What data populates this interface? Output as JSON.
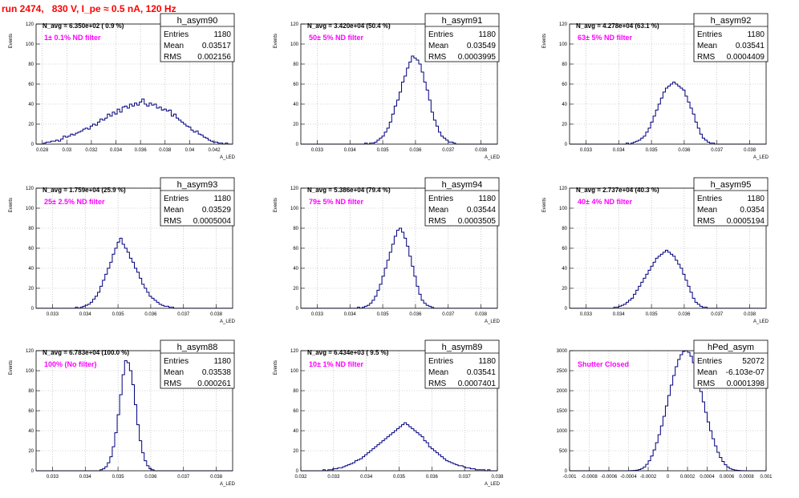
{
  "page": {
    "run_title": "run 2474,   830 V, I_pe ≈ 0.5 nA, 120 Hz"
  },
  "colors": {
    "histogram": "#00007f",
    "annotation": "#ff00ff",
    "title": "#ff0000",
    "grid": "#aaaaaa"
  },
  "chart_data": [
    {
      "type": "histogram",
      "name": "h_asym90",
      "annotation": "N_avg = 6.350e+02 ( 0.9 %)",
      "label": "1± 0.1% ND filter",
      "stats": {
        "Entries": "1180",
        "Mean": "0.03517",
        "RMS": "0.002156"
      },
      "ylabel": "Events",
      "xlabel": "A_LED",
      "xlim": [
        0.0275,
        0.0435
      ],
      "ylim": [
        0,
        120
      ],
      "xticks": [
        "0.028",
        "0.03",
        "0.032",
        "0.034",
        "0.036",
        "0.038",
        "0.04",
        "0.042"
      ],
      "yticks": [
        "0",
        "20",
        "40",
        "60",
        "80",
        "100",
        "120"
      ],
      "grid": true,
      "values": [
        0,
        0,
        0,
        1,
        2,
        2,
        3,
        3,
        4,
        3,
        5,
        8,
        7,
        8,
        10,
        9,
        11,
        12,
        13,
        15,
        16,
        15,
        18,
        20,
        19,
        22,
        25,
        24,
        26,
        30,
        28,
        32,
        30,
        35,
        32,
        37,
        38,
        36,
        40,
        38,
        41,
        39,
        42,
        45,
        40,
        38,
        41,
        39,
        40,
        36,
        37,
        34,
        35,
        33,
        34,
        28,
        30,
        26,
        24,
        22,
        20,
        18,
        17,
        14,
        12,
        13,
        10,
        9,
        7,
        6,
        4,
        3,
        2,
        2,
        1,
        1,
        0,
        1,
        0,
        0
      ]
    },
    {
      "type": "histogram",
      "name": "h_asym91",
      "annotation": "N_avg = 3.420e+04 (50.4 %)",
      "label": "50± 5% ND filter",
      "stats": {
        "Entries": "1180",
        "Mean": "0.03549",
        "RMS": "0.0003995"
      },
      "ylabel": "Events",
      "xlabel": "A_LED",
      "xlim": [
        0.0325,
        0.0385
      ],
      "ylim": [
        0,
        120
      ],
      "xticks": [
        "0.033",
        "0.034",
        "0.035",
        "0.036",
        "0.037",
        "0.038"
      ],
      "yticks": [
        "0",
        "20",
        "40",
        "60",
        "80",
        "100",
        "120"
      ],
      "grid": true,
      "values": [
        0,
        0,
        0,
        0,
        0,
        0,
        0,
        0,
        0,
        0,
        0,
        0,
        0,
        0,
        0,
        0,
        0,
        0,
        0,
        0,
        0,
        0,
        0,
        0,
        0,
        0,
        1,
        0,
        1,
        1,
        2,
        4,
        6,
        8,
        12,
        16,
        22,
        30,
        38,
        44,
        52,
        62,
        68,
        76,
        82,
        88,
        86,
        84,
        80,
        72,
        62,
        54,
        44,
        32,
        24,
        18,
        12,
        8,
        6,
        4,
        2,
        2,
        1,
        0,
        0,
        0,
        0,
        0,
        0,
        0,
        0,
        0,
        0,
        0,
        0,
        0,
        0,
        0,
        0,
        0
      ]
    },
    {
      "type": "histogram",
      "name": "h_asym92",
      "annotation": "N_avg = 4.278e+04 (63.1 %)",
      "label": "63± 5% ND filter",
      "stats": {
        "Entries": "1180",
        "Mean": "0.03541",
        "RMS": "0.0004409"
      },
      "ylabel": "Events",
      "xlabel": "A_LED",
      "xlim": [
        0.0325,
        0.0385
      ],
      "ylim": [
        0,
        120
      ],
      "xticks": [
        "0.033",
        "0.034",
        "0.035",
        "0.036",
        "0.037",
        "0.038"
      ],
      "yticks": [
        "0",
        "20",
        "40",
        "60",
        "80",
        "100",
        "120"
      ],
      "grid": true,
      "values": [
        0,
        0,
        0,
        0,
        0,
        0,
        0,
        0,
        0,
        0,
        0,
        0,
        0,
        0,
        0,
        0,
        0,
        0,
        0,
        0,
        0,
        0,
        0,
        1,
        0,
        1,
        2,
        3,
        4,
        6,
        8,
        12,
        16,
        22,
        28,
        34,
        40,
        46,
        52,
        56,
        58,
        60,
        62,
        60,
        58,
        56,
        54,
        48,
        42,
        36,
        30,
        22,
        16,
        10,
        6,
        4,
        2,
        1,
        1,
        0,
        0,
        0,
        0,
        0,
        0,
        0,
        0,
        0,
        0,
        0,
        0,
        0,
        0,
        0,
        0,
        0,
        0,
        0,
        0,
        0
      ]
    },
    {
      "type": "histogram",
      "name": "h_asym93",
      "annotation": "N_avg = 1.759e+04 (25.9 %)",
      "label": "25± 2.5% ND filter",
      "stats": {
        "Entries": "1180",
        "Mean": "0.03529",
        "RMS": "0.0005004"
      },
      "ylabel": "Events",
      "xlabel": "A_LED",
      "xlim": [
        0.0325,
        0.0385
      ],
      "ylim": [
        0,
        120
      ],
      "xticks": [
        "0.033",
        "0.034",
        "0.035",
        "0.036",
        "0.037",
        "0.038"
      ],
      "yticks": [
        "0",
        "20",
        "40",
        "60",
        "80",
        "100",
        "120"
      ],
      "grid": true,
      "values": [
        0,
        0,
        0,
        0,
        0,
        0,
        0,
        0,
        0,
        0,
        0,
        0,
        0,
        0,
        0,
        0,
        1,
        0,
        1,
        2,
        3,
        4,
        6,
        9,
        12,
        16,
        22,
        28,
        34,
        40,
        46,
        54,
        60,
        66,
        70,
        64,
        60,
        56,
        50,
        46,
        40,
        36,
        30,
        24,
        20,
        16,
        12,
        10,
        8,
        6,
        4,
        3,
        2,
        2,
        1,
        1,
        0,
        0,
        0,
        0,
        0,
        0,
        0,
        0,
        0,
        0,
        0,
        0,
        0,
        0,
        0,
        0,
        0,
        0,
        0,
        0,
        0,
        0,
        0,
        0
      ]
    },
    {
      "type": "histogram",
      "name": "h_asym94",
      "annotation": "N_avg = 5.386e+04 (79.4 %)",
      "label": "79± 5% ND filter",
      "stats": {
        "Entries": "1180",
        "Mean": "0.03544",
        "RMS": "0.0003505"
      },
      "ylabel": "Events",
      "xlabel": "A_LED",
      "xlim": [
        0.0325,
        0.0385
      ],
      "ylim": [
        0,
        120
      ],
      "xticks": [
        "0.033",
        "0.034",
        "0.035",
        "0.036",
        "0.037",
        "0.038"
      ],
      "yticks": [
        "0",
        "20",
        "40",
        "60",
        "80",
        "100",
        "120"
      ],
      "grid": true,
      "values": [
        0,
        0,
        0,
        0,
        0,
        0,
        0,
        0,
        0,
        0,
        0,
        0,
        0,
        0,
        0,
        0,
        0,
        0,
        0,
        0,
        0,
        0,
        0,
        1,
        0,
        1,
        2,
        3,
        5,
        8,
        12,
        18,
        24,
        32,
        40,
        48,
        56,
        64,
        72,
        78,
        80,
        76,
        70,
        62,
        52,
        42,
        32,
        22,
        14,
        8,
        5,
        3,
        2,
        1,
        0,
        0,
        0,
        0,
        0,
        0,
        0,
        0,
        0,
        0,
        0,
        0,
        0,
        0,
        0,
        0,
        0,
        0,
        0,
        0,
        0,
        0,
        0,
        0,
        0,
        0
      ]
    },
    {
      "type": "histogram",
      "name": "h_asym95",
      "annotation": "N_avg = 2.737e+04 (40.3 %)",
      "label": "40± 4% ND filter",
      "stats": {
        "Entries": "1180",
        "Mean": "0.0354",
        "RMS": "0.0005194"
      },
      "ylabel": "Events",
      "xlabel": "A_LED",
      "xlim": [
        0.0325,
        0.0385
      ],
      "ylim": [
        0,
        120
      ],
      "xticks": [
        "0.033",
        "0.034",
        "0.035",
        "0.036",
        "0.037",
        "0.038"
      ],
      "yticks": [
        "0",
        "20",
        "40",
        "60",
        "80",
        "100",
        "120"
      ],
      "grid": true,
      "values": [
        0,
        0,
        0,
        0,
        0,
        0,
        0,
        0,
        0,
        0,
        0,
        0,
        0,
        0,
        0,
        0,
        0,
        0,
        1,
        1,
        2,
        3,
        4,
        6,
        8,
        10,
        14,
        18,
        22,
        26,
        30,
        34,
        38,
        42,
        46,
        50,
        52,
        54,
        56,
        58,
        56,
        54,
        52,
        48,
        44,
        40,
        34,
        28,
        22,
        16,
        10,
        6,
        4,
        2,
        1,
        1,
        0,
        0,
        0,
        0,
        0,
        0,
        0,
        0,
        0,
        0,
        0,
        0,
        0,
        0,
        0,
        0,
        0,
        0,
        0,
        0,
        0,
        0,
        0,
        0
      ]
    },
    {
      "type": "histogram",
      "name": "h_asym88",
      "annotation": "N_avg = 6.783e+04 (100.0 %)",
      "label": "100% (No filter)",
      "stats": {
        "Entries": "1180",
        "Mean": "0.03538",
        "RMS": "0.000261"
      },
      "ylabel": "Events",
      "xlabel": "A_LED",
      "xlim": [
        0.0325,
        0.0385
      ],
      "ylim": [
        0,
        120
      ],
      "xticks": [
        "0.033",
        "0.034",
        "0.035",
        "0.036",
        "0.037",
        "0.038"
      ],
      "yticks": [
        "0",
        "20",
        "40",
        "60",
        "80",
        "100",
        "120"
      ],
      "grid": true,
      "values": [
        0,
        0,
        0,
        0,
        0,
        0,
        0,
        0,
        0,
        0,
        0,
        0,
        0,
        0,
        0,
        0,
        0,
        0,
        0,
        0,
        0,
        0,
        0,
        0,
        0,
        0,
        1,
        2,
        4,
        8,
        14,
        24,
        38,
        56,
        76,
        96,
        110,
        108,
        100,
        86,
        66,
        46,
        30,
        18,
        10,
        5,
        2,
        1,
        0,
        0,
        0,
        0,
        0,
        0,
        0,
        0,
        0,
        0,
        0,
        0,
        0,
        0,
        0,
        0,
        0,
        0,
        0,
        0,
        0,
        0,
        0,
        0,
        0,
        0,
        0,
        0,
        0,
        0,
        0,
        0
      ]
    },
    {
      "type": "histogram",
      "name": "h_asym89",
      "annotation": "N_avg = 6.434e+03 ( 9.5 %)",
      "label": "10± 1% ND filter",
      "stats": {
        "Entries": "1180",
        "Mean": "0.03541",
        "RMS": "0.0007401"
      },
      "ylabel": "Events",
      "xlabel": "A_LED",
      "xlim": [
        0.032,
        0.038
      ],
      "ylim": [
        0,
        120
      ],
      "xticks": [
        "0.032",
        "0.033",
        "0.034",
        "0.035",
        "0.036",
        "0.037",
        "0.038"
      ],
      "yticks": [
        "0",
        "20",
        "40",
        "60",
        "80",
        "100",
        "120"
      ],
      "grid": true,
      "values": [
        0,
        0,
        0,
        0,
        0,
        0,
        0,
        0,
        0,
        1,
        0,
        1,
        1,
        2,
        2,
        3,
        3,
        4,
        5,
        6,
        7,
        8,
        10,
        11,
        12,
        14,
        16,
        18,
        20,
        22,
        24,
        26,
        28,
        30,
        32,
        34,
        36,
        38,
        40,
        42,
        44,
        46,
        48,
        46,
        44,
        42,
        40,
        38,
        36,
        34,
        30,
        28,
        24,
        22,
        20,
        18,
        16,
        14,
        12,
        10,
        9,
        8,
        7,
        6,
        5,
        5,
        4,
        3,
        3,
        2,
        2,
        1,
        1,
        1,
        1,
        0,
        1,
        0,
        0,
        0
      ]
    },
    {
      "type": "histogram",
      "name": "hPed_asym",
      "annotation": "",
      "label": "Shutter Closed",
      "stats": {
        "Entries": "52072",
        "Mean": "-6.103e-07",
        "RMS": "0.0001398"
      },
      "ylabel": "",
      "xlabel": "",
      "xlim": [
        -0.001,
        0.001
      ],
      "ylim": [
        0,
        3000
      ],
      "xticks": [
        "-0.001",
        "-0.0008",
        "-0.0006",
        "-0.0004",
        "-0.0002",
        "0",
        "0.0002",
        "0.0004",
        "0.0006",
        "0.0008",
        "0.001"
      ],
      "yticks": [
        "0",
        "500",
        "1000",
        "1500",
        "2000",
        "2500",
        "3000"
      ],
      "grid": true,
      "values": [
        0,
        0,
        0,
        0,
        0,
        0,
        0,
        0,
        0,
        0,
        0,
        0,
        0,
        0,
        0,
        0,
        0,
        0,
        0,
        0,
        0,
        0,
        0,
        1,
        2,
        4,
        8,
        16,
        30,
        56,
        96,
        160,
        250,
        370,
        520,
        700,
        900,
        1120,
        1360,
        1620,
        1880,
        2140,
        2380,
        2600,
        2780,
        2900,
        2980,
        3000,
        2960,
        2860,
        2700,
        2480,
        2240,
        1980,
        1720,
        1460,
        1220,
        1000,
        800,
        620,
        460,
        330,
        230,
        150,
        95,
        56,
        32,
        18,
        10,
        5,
        2,
        1,
        0,
        0,
        0,
        0,
        0,
        0,
        0,
        0
      ]
    }
  ]
}
